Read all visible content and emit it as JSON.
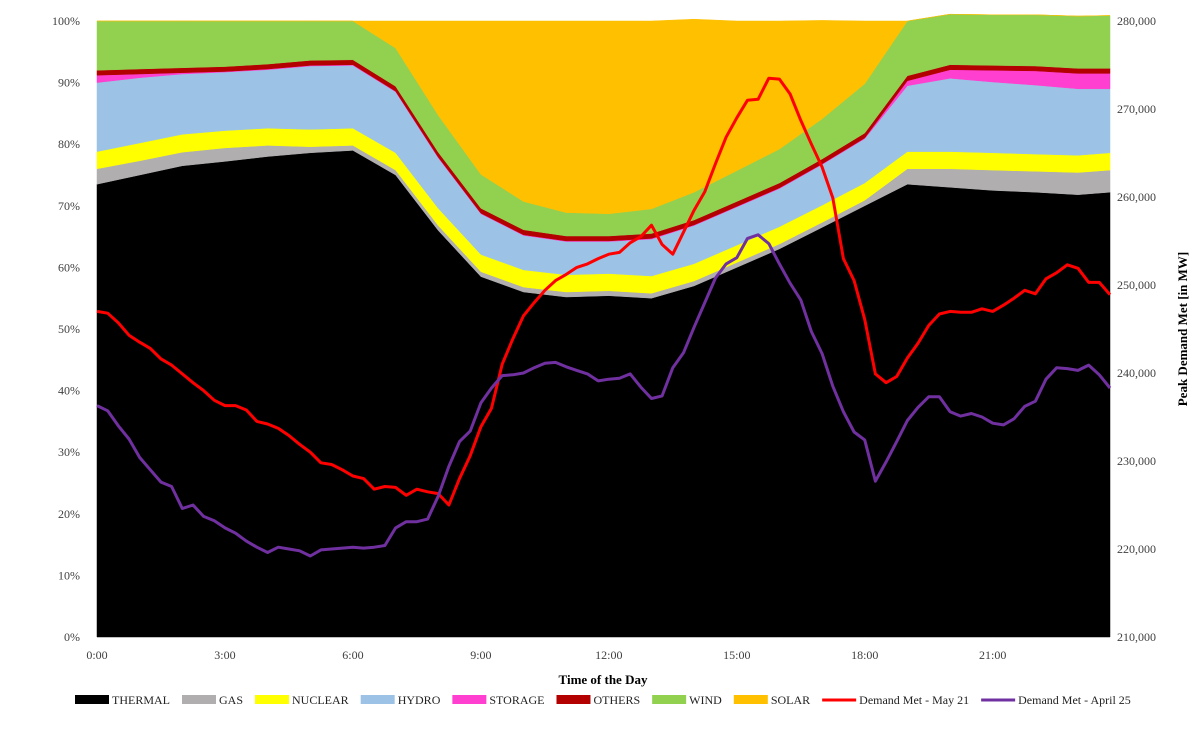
{
  "chart_data": {
    "type": "area",
    "xlabel": "Time of the Day",
    "ylabel_right": "Peak Demand Met [in MW]",
    "x_ticks": [
      "0:00",
      "3:00",
      "6:00",
      "9:00",
      "12:00",
      "15:00",
      "18:00",
      "21:00"
    ],
    "y_left_ticks": [
      "0%",
      "10%",
      "20%",
      "30%",
      "40%",
      "50%",
      "60%",
      "70%",
      "80%",
      "90%",
      "100%"
    ],
    "y_right_ticks": [
      "210,000",
      "220,000",
      "230,000",
      "240,000",
      "250,000",
      "260,000",
      "270,000",
      "280,000"
    ],
    "ylim_left": [
      0,
      100
    ],
    "ylim_right": [
      210000,
      280000
    ],
    "xlim": [
      0,
      23.75
    ],
    "grid": false,
    "legend_position": "bottom",
    "area_x": [
      0,
      1,
      2,
      3,
      4,
      5,
      6,
      7,
      8,
      9,
      10,
      11,
      12,
      13,
      14,
      15,
      16,
      17,
      18,
      19,
      20,
      21,
      22,
      23,
      23.75
    ],
    "area_series": [
      {
        "name": "THERMAL",
        "color": "#000000",
        "values": [
          73.5,
          75,
          76.5,
          77.2,
          78,
          78.6,
          79,
          75,
          66,
          58.5,
          56,
          55.2,
          55.4,
          55,
          57,
          60,
          63,
          66.5,
          70,
          73.5,
          73,
          72.5,
          72.2,
          71.8,
          72.2
        ]
      },
      {
        "name": "GAS",
        "color": "#b0aeae",
        "values": [
          2.5,
          2.3,
          2.2,
          2.2,
          1.8,
          1.0,
          0.8,
          0.8,
          0.8,
          0.8,
          0.8,
          0.8,
          0.8,
          0.8,
          0.8,
          0.8,
          0.8,
          0.8,
          0.9,
          2.5,
          3.0,
          3.3,
          3.4,
          3.6,
          3.6
        ]
      },
      {
        "name": "NUCLEAR",
        "color": "#ffff00",
        "values": [
          2.8,
          2.9,
          2.9,
          2.8,
          2.8,
          2.8,
          2.8,
          2.8,
          2.8,
          2.8,
          2.8,
          2.8,
          2.8,
          2.8,
          2.8,
          2.8,
          2.8,
          2.8,
          2.8,
          2.8,
          2.8,
          2.8,
          2.8,
          2.8,
          2.8
        ]
      },
      {
        "name": "HYDRO",
        "color": "#9cc3e5",
        "values": [
          11.2,
          10.6,
          9.8,
          9.5,
          9.5,
          10.3,
          10.2,
          9.9,
          8.2,
          6.6,
          5.6,
          5.4,
          5.2,
          6.0,
          6.2,
          6.2,
          6.2,
          6.6,
          7.2,
          10.7,
          11.9,
          11.5,
          11.2,
          10.8,
          10.4
        ]
      },
      {
        "name": "STORAGE",
        "color": "#ff3fd0",
        "values": [
          1.2,
          0.6,
          0.2,
          0.1,
          0.1,
          0.1,
          0.1,
          0.1,
          0.1,
          0.1,
          0.1,
          0.1,
          0.1,
          0.1,
          0.1,
          0.1,
          0.1,
          0.1,
          0.1,
          0.8,
          1.4,
          1.9,
          2.3,
          2.5,
          2.5
        ]
      },
      {
        "name": "OTHERS",
        "color": "#b30000",
        "values": [
          0.8,
          0.8,
          0.8,
          0.8,
          0.8,
          0.8,
          0.8,
          0.8,
          0.8,
          0.8,
          0.8,
          0.8,
          0.8,
          0.8,
          0.8,
          0.8,
          0.8,
          0.8,
          0.8,
          0.8,
          0.8,
          0.8,
          0.8,
          0.8,
          0.8
        ]
      },
      {
        "name": "WIND",
        "color": "#92d050",
        "values": [
          8.0,
          7.8,
          7.6,
          7.4,
          7.0,
          6.4,
          6.3,
          6.2,
          6.0,
          5.5,
          4.6,
          3.8,
          3.6,
          4.0,
          4.5,
          5.0,
          5.5,
          6.5,
          8.0,
          8.9,
          8.2,
          8.2,
          8.3,
          8.5,
          8.6
        ]
      },
      {
        "name": "SOLAR",
        "color": "#ffc000",
        "values": [
          0,
          0,
          0,
          0,
          0,
          0,
          0,
          4.4,
          15.3,
          24.9,
          29.3,
          31.1,
          31.3,
          30.5,
          28.1,
          24.3,
          20.8,
          16.0,
          10.2,
          0,
          0,
          0,
          0,
          0,
          0
        ]
      }
    ],
    "line_series": [
      {
        "name": "Demand Met - May 21",
        "color": "#ff0000",
        "axis": "right",
        "x": [
          0,
          0.25,
          0.5,
          0.75,
          1,
          1.25,
          1.5,
          1.75,
          2,
          2.25,
          2.5,
          2.75,
          3,
          3.25,
          3.5,
          3.75,
          4,
          4.25,
          4.5,
          4.75,
          5,
          5.25,
          5.5,
          5.75,
          6,
          6.25,
          6.5,
          6.75,
          7,
          7.25,
          7.5,
          7.75,
          8,
          8.25,
          8.5,
          8.75,
          9,
          9.25,
          9.5,
          9.75,
          10,
          10.25,
          10.5,
          10.75,
          11,
          11.25,
          11.5,
          11.75,
          12,
          12.25,
          12.5,
          12.75,
          13,
          13.25,
          13.5,
          13.75,
          14,
          14.25,
          14.5,
          14.75,
          15,
          15.25,
          15.5,
          15.75,
          16,
          16.25,
          16.5,
          16.75,
          17,
          17.25,
          17.5,
          17.75,
          18,
          18.25,
          18.5,
          18.75,
          19,
          19.25,
          19.5,
          19.75,
          20,
          20.25,
          20.5,
          20.75,
          21,
          21.25,
          21.5,
          21.75,
          22,
          22.25,
          22.5,
          22.75,
          23,
          23.25,
          23.5,
          23.75
        ],
        "values": [
          247000,
          246800,
          245700,
          244300,
          243500,
          242800,
          241600,
          240900,
          239900,
          238900,
          238000,
          236900,
          236300,
          236300,
          235800,
          234500,
          234200,
          233700,
          232900,
          231900,
          231000,
          229800,
          229600,
          229000,
          228300,
          228000,
          226800,
          227100,
          227000,
          226100,
          226800,
          226500,
          226300,
          225000,
          228000,
          230600,
          233900,
          236000,
          241000,
          243900,
          246500,
          248000,
          249400,
          250500,
          251200,
          252000,
          252400,
          253000,
          253500,
          253700,
          254800,
          255500,
          256800,
          254600,
          253500,
          256000,
          258500,
          260600,
          263800,
          266800,
          269000,
          271000,
          271100,
          273500,
          273400,
          271700,
          268700,
          266000,
          263400,
          259900,
          253000,
          250500,
          246100,
          239900,
          238900,
          239600,
          241700,
          243400,
          245400,
          246700,
          247000,
          246900,
          246900,
          247300,
          247000,
          247700,
          248500,
          249400,
          249000,
          250700,
          251400,
          252300,
          251900,
          250300,
          250300,
          248900
        ]
      },
      {
        "name": "Demand Met - April 25",
        "color": "#7030a0",
        "axis": "right",
        "x": [
          0,
          0.25,
          0.5,
          0.75,
          1,
          1.25,
          1.5,
          1.75,
          2,
          2.25,
          2.5,
          2.75,
          3,
          3.25,
          3.5,
          3.75,
          4,
          4.25,
          4.5,
          4.75,
          5,
          5.25,
          5.5,
          5.75,
          6,
          6.25,
          6.5,
          6.75,
          7,
          7.25,
          7.5,
          7.75,
          8,
          8.25,
          8.5,
          8.75,
          9,
          9.25,
          9.5,
          9.75,
          10,
          10.25,
          10.5,
          10.75,
          11,
          11.25,
          11.5,
          11.75,
          12,
          12.25,
          12.5,
          12.75,
          13,
          13.25,
          13.5,
          13.75,
          14,
          14.25,
          14.5,
          14.75,
          15,
          15.25,
          15.5,
          15.75,
          16,
          16.25,
          16.5,
          16.75,
          17,
          17.25,
          17.5,
          17.75,
          18,
          18.25,
          18.5,
          18.75,
          19,
          19.25,
          19.5,
          19.75,
          20,
          20.25,
          20.5,
          20.75,
          21,
          21.25,
          21.5,
          21.75,
          22,
          22.25,
          22.5,
          22.75,
          23,
          23.25,
          23.5,
          23.75
        ],
        "values": [
          236300,
          235700,
          234000,
          232500,
          230400,
          229000,
          227600,
          227100,
          224600,
          225000,
          223700,
          223200,
          222400,
          221800,
          220900,
          220200,
          219600,
          220200,
          220000,
          219800,
          219200,
          219900,
          220000,
          220100,
          220200,
          220100,
          220200,
          220400,
          222400,
          223100,
          223100,
          223400,
          226000,
          229400,
          232200,
          233400,
          236600,
          238300,
          239700,
          239800,
          240000,
          240600,
          241100,
          241200,
          240700,
          240300,
          239900,
          239100,
          239300,
          239400,
          239900,
          238400,
          237100,
          237400,
          240600,
          242300,
          245200,
          248000,
          250800,
          252400,
          253100,
          255300,
          255700,
          254700,
          252400,
          250200,
          248300,
          244700,
          242200,
          238500,
          235600,
          233300,
          232400,
          227700,
          229900,
          232200,
          234600,
          236100,
          237300,
          237300,
          235600,
          235100,
          235400,
          235000,
          234300,
          234100,
          234800,
          236200,
          236800,
          239300,
          240600,
          240500,
          240300,
          240900,
          239800,
          238300
        ]
      }
    ]
  }
}
